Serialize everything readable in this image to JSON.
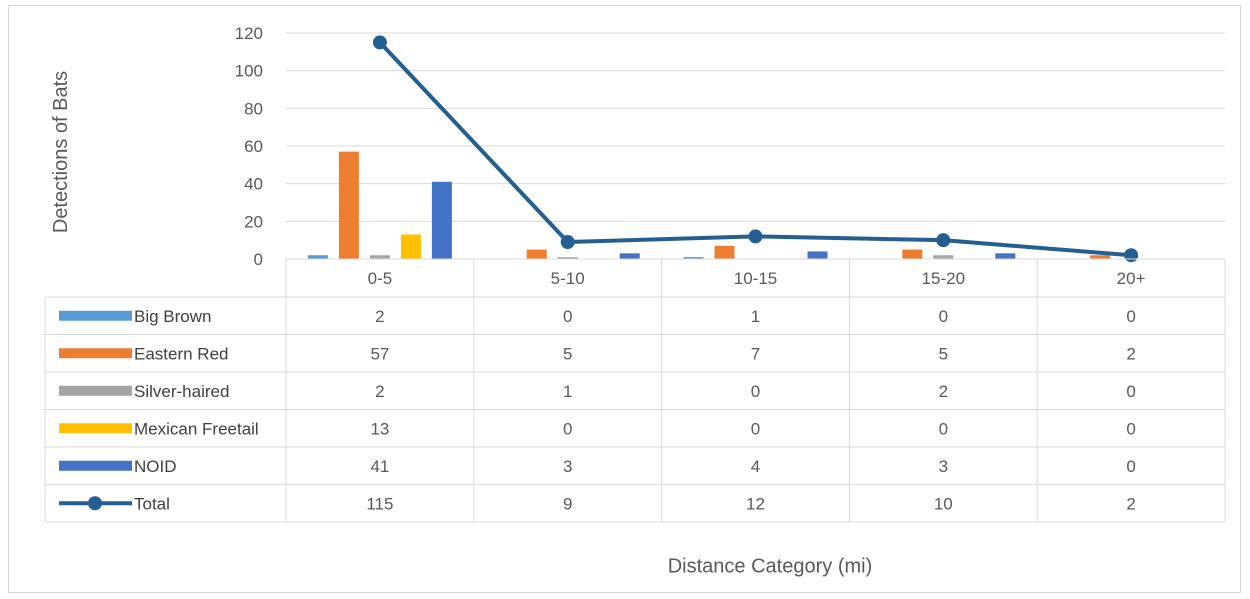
{
  "chart_data": {
    "type": "bar",
    "xlabel": "Distance Category (mi)",
    "ylabel": "Detections of Bats",
    "ylim": [
      0,
      120
    ],
    "yticks": [
      0,
      20,
      40,
      60,
      80,
      100,
      120
    ],
    "grid": true,
    "legend_placement": "data-table",
    "categories": [
      "0-5",
      "5-10",
      "10-15",
      "15-20",
      "20+"
    ],
    "series": [
      {
        "name": "Big Brown",
        "kind": "bar",
        "color": "#5b9bd5",
        "values": [
          2,
          0,
          1,
          0,
          0
        ]
      },
      {
        "name": "Eastern Red",
        "kind": "bar",
        "color": "#ed7d31",
        "values": [
          57,
          5,
          7,
          5,
          2
        ]
      },
      {
        "name": "Silver-haired",
        "kind": "bar",
        "color": "#a5a5a5",
        "values": [
          2,
          1,
          0,
          2,
          0
        ]
      },
      {
        "name": "Mexican Freetail",
        "kind": "bar",
        "color": "#ffc000",
        "values": [
          13,
          0,
          0,
          0,
          0
        ]
      },
      {
        "name": "NOID",
        "kind": "bar",
        "color": "#4472c4",
        "values": [
          41,
          3,
          4,
          3,
          0
        ]
      },
      {
        "name": "Total",
        "kind": "line",
        "color": "#255e91",
        "values": [
          115,
          9,
          12,
          10,
          2
        ]
      }
    ]
  }
}
